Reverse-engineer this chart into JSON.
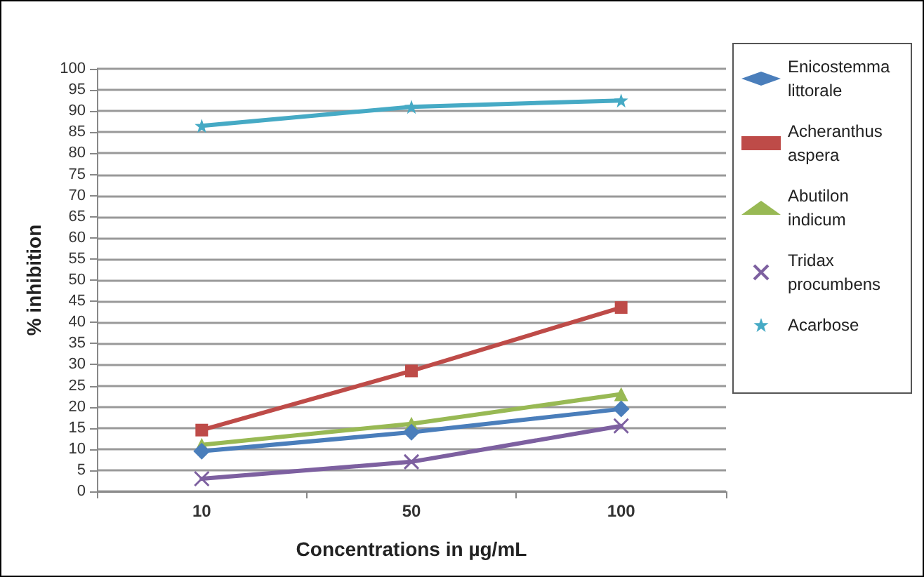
{
  "chart_data": {
    "type": "line",
    "xlabel": "Concentrations in µg/mL",
    "ylabel": "% inhibition",
    "categories": [
      "10",
      "50",
      "100"
    ],
    "series": [
      {
        "name": "Enicostemma littorale",
        "color": "#4a7ebb",
        "marker": "diamond",
        "values": [
          9.5,
          14,
          19.5
        ]
      },
      {
        "name": "Acheranthus aspera",
        "color": "#be4b48",
        "marker": "square",
        "values": [
          14.5,
          28.5,
          43.5
        ]
      },
      {
        "name": "Abutilon indicum",
        "color": "#98b954",
        "marker": "triangle",
        "values": [
          11,
          16,
          23
        ]
      },
      {
        "name": "Tridax procumbens",
        "color": "#7d60a0",
        "marker": "cross",
        "values": [
          3,
          7,
          15.5
        ]
      },
      {
        "name": "Acarbose",
        "color": "#46aac5",
        "marker": "star",
        "values": [
          86.5,
          91,
          92.5
        ]
      }
    ],
    "ylim": [
      0,
      100
    ],
    "yticks": [
      0,
      5,
      10,
      15,
      20,
      25,
      30,
      35,
      40,
      45,
      50,
      55,
      60,
      65,
      70,
      75,
      80,
      85,
      90,
      95,
      100
    ],
    "grid": "y",
    "legend": "right"
  }
}
